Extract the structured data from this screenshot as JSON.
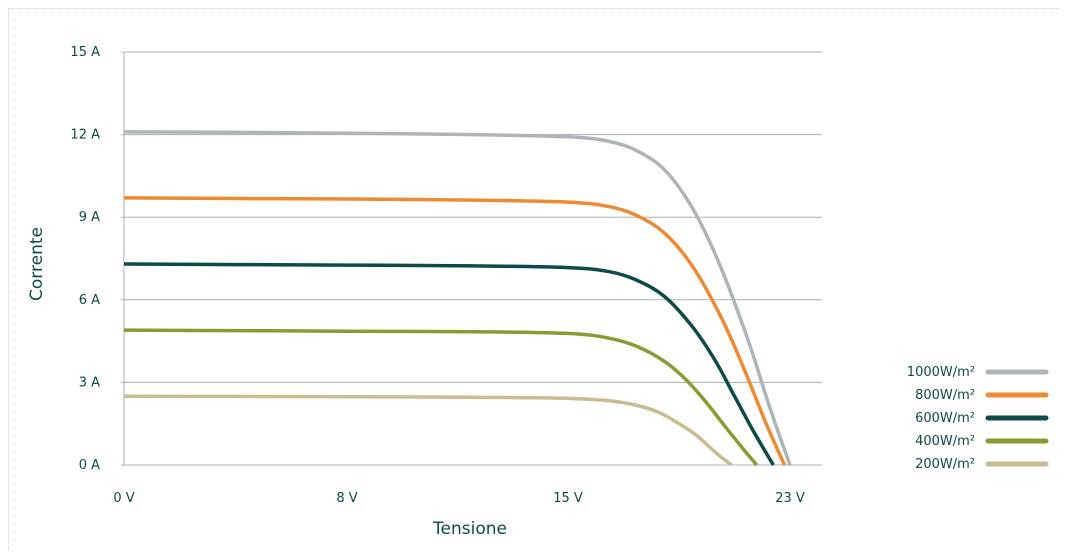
{
  "chart_data": {
    "type": "line",
    "xlabel": "Tensione",
    "ylabel": "Corrente",
    "x_ticks": [
      {
        "value": 0,
        "label": "0 V"
      },
      {
        "value": 8,
        "label": "8 V"
      },
      {
        "value": 15,
        "label": "15 V"
      },
      {
        "value": 23,
        "label": "23 V"
      }
    ],
    "y_ticks": [
      {
        "value": 0,
        "label": "0 A"
      },
      {
        "value": 3,
        "label": "3 A"
      },
      {
        "value": 6,
        "label": "6 A"
      },
      {
        "value": 9,
        "label": "9 A"
      },
      {
        "value": 12,
        "label": "12 A"
      },
      {
        "value": 15,
        "label": "15 A"
      }
    ],
    "grid": true,
    "legend_position": "right",
    "series": [
      {
        "name": "1000W/m²",
        "color": "#aeb5b8",
        "x": [
          0,
          4,
          8,
          12,
          15,
          16.5,
          17.5,
          18.5,
          19.5,
          20.5,
          21.5,
          22.3,
          23.0
        ],
        "y": [
          12.1,
          12.08,
          12.05,
          12.0,
          11.92,
          11.75,
          11.4,
          10.7,
          9.3,
          7.2,
          4.5,
          2.0,
          0
        ]
      },
      {
        "name": "800W/m²",
        "color": "#ee8a33",
        "x": [
          0,
          4,
          8,
          12,
          15,
          16.5,
          17.5,
          18.5,
          19.5,
          20.5,
          21.3,
          22.1,
          22.8
        ],
        "y": [
          9.7,
          9.68,
          9.66,
          9.62,
          9.55,
          9.38,
          9.05,
          8.4,
          7.2,
          5.4,
          3.6,
          1.6,
          0
        ]
      },
      {
        "name": "600W/m²",
        "color": "#0e4a47",
        "x": [
          0,
          4,
          8,
          12,
          15,
          16.5,
          17.5,
          18.5,
          19.5,
          20.3,
          21.0,
          21.7,
          22.4
        ],
        "y": [
          7.3,
          7.28,
          7.26,
          7.23,
          7.17,
          7.02,
          6.7,
          6.1,
          5.0,
          3.8,
          2.5,
          1.2,
          0
        ]
      },
      {
        "name": "400W/m²",
        "color": "#8a9b33",
        "x": [
          0,
          4,
          8,
          12,
          15,
          16.5,
          17.5,
          18.5,
          19.3,
          20.0,
          20.7,
          21.3,
          21.8
        ],
        "y": [
          4.9,
          4.88,
          4.86,
          4.84,
          4.78,
          4.6,
          4.3,
          3.75,
          3.05,
          2.25,
          1.35,
          0.6,
          0
        ]
      },
      {
        "name": "200W/m²",
        "color": "#c9bc92",
        "x": [
          0,
          4,
          8,
          12,
          15,
          16.5,
          17.5,
          18.3,
          19.0,
          19.6,
          20.1,
          20.5,
          20.9
        ],
        "y": [
          2.5,
          2.49,
          2.48,
          2.46,
          2.42,
          2.33,
          2.16,
          1.9,
          1.5,
          1.1,
          0.65,
          0.3,
          0
        ]
      }
    ]
  }
}
